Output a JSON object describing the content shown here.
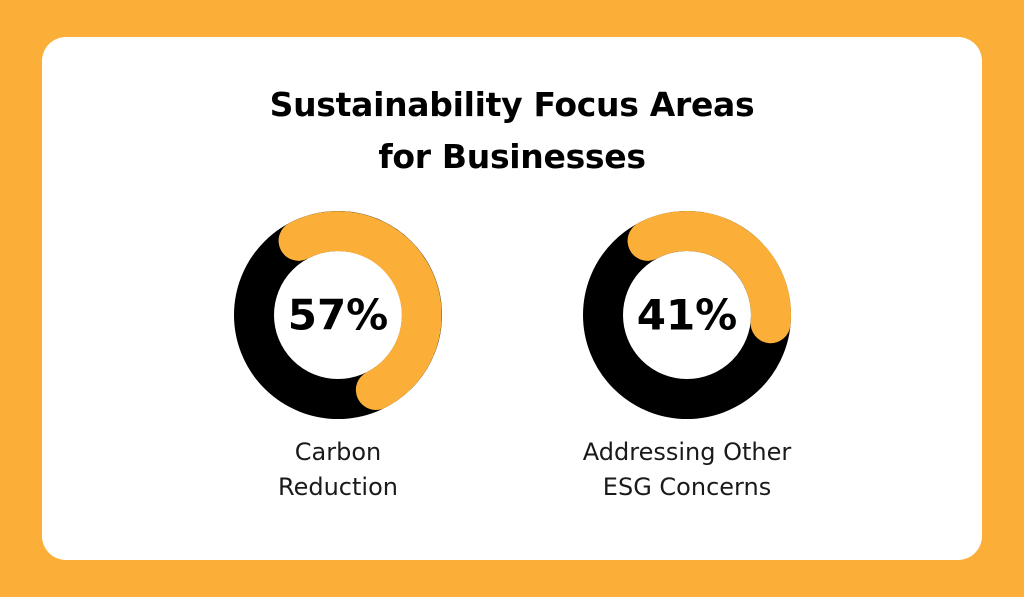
{
  "chart_data": {
    "type": "pie",
    "title": "Sustainability Focus Areas for Businesses",
    "title_lines": [
      "Sustainability Focus Areas",
      "for Businesses"
    ],
    "charts": [
      {
        "value": 57,
        "label": "57%",
        "caption_lines": [
          "Carbon",
          "Reduction"
        ]
      },
      {
        "value": 41,
        "label": "41%",
        "caption_lines": [
          "Addressing Other",
          "ESG Concerns"
        ]
      }
    ]
  },
  "colors": {
    "background": "#FBAF39",
    "card": "#FFFFFF",
    "accent": "#FBAF39",
    "ring": "#000000"
  }
}
